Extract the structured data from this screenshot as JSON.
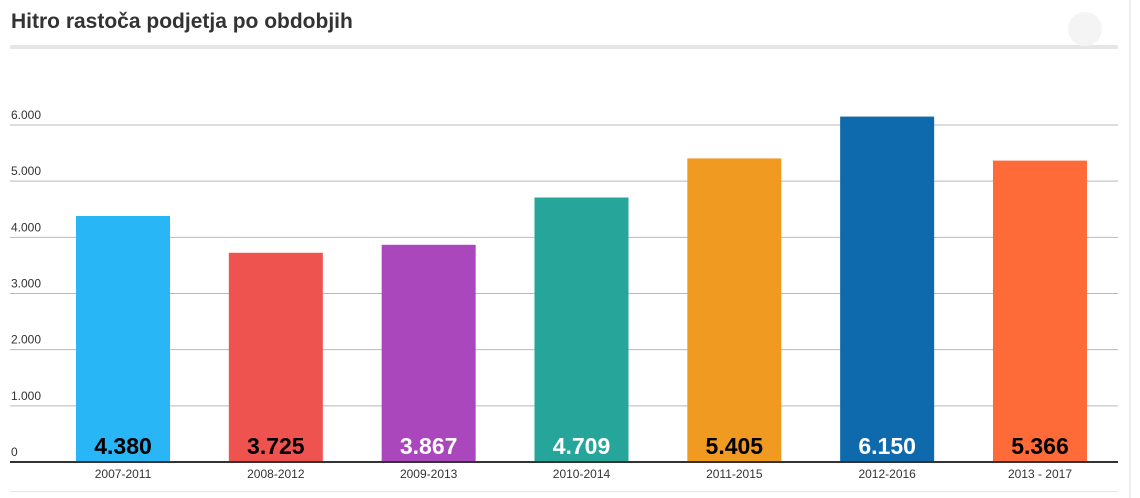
{
  "header": {
    "title": "Hitro rastoča podjetja po obdobjih"
  },
  "chart_data": {
    "type": "bar",
    "title": "Hitro rastoča podjetja po obdobjih",
    "xlabel": "",
    "ylabel": "",
    "categories": [
      "2007-2011",
      "2008-2012",
      "2009-2013",
      "2010-2014",
      "2011-2015",
      "2012-2016",
      "2013 - 2017"
    ],
    "values": [
      4380,
      3725,
      3867,
      4709,
      5405,
      6150,
      5366
    ],
    "data_labels": [
      "4.380",
      "3.725",
      "3.867",
      "4.709",
      "5.405",
      "6.150",
      "5.366"
    ],
    "bar_colors": [
      "#29b6f6",
      "#ef5350",
      "#ab47bc",
      "#26a69a",
      "#f09a22",
      "#0f6aad",
      "#ff6b38"
    ],
    "label_colors": [
      "#000000",
      "#000000",
      "#ffffff",
      "#ffffff",
      "#000000",
      "#ffffff",
      "#000000"
    ],
    "ylim": [
      0,
      6000
    ],
    "yticks": [
      0,
      1000,
      2000,
      3000,
      4000,
      5000,
      6000
    ],
    "ytick_labels": [
      "0",
      "1.000",
      "2.000",
      "3.000",
      "4.000",
      "5.000",
      "6.000"
    ],
    "grid": true,
    "legend": "none"
  }
}
